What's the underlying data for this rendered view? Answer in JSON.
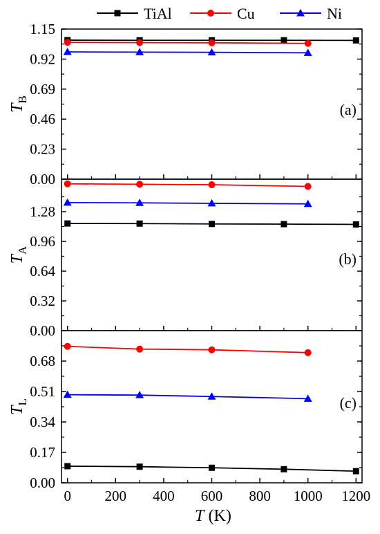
{
  "legend": [
    {
      "name": "TiAl",
      "color": "#000000",
      "marker": "square"
    },
    {
      "name": "Cu",
      "color": "#ff0000",
      "marker": "circle"
    },
    {
      "name": "Ni",
      "color": "#0000ff",
      "marker": "triangle"
    }
  ],
  "chart_data": [
    {
      "type": "line",
      "panel": "(a)",
      "ylabel": {
        "base": "T",
        "sub": "B"
      },
      "yticks": [
        "0.00",
        "0.23",
        "0.46",
        "0.69",
        "0.92",
        "1.15"
      ],
      "ylim": [
        0,
        1.15
      ],
      "xlim": [
        -25,
        1225
      ],
      "series": [
        {
          "name": "TiAl",
          "color": "#000000",
          "marker": "square",
          "x": [
            0,
            300,
            600,
            900,
            1200
          ],
          "y": [
            1.065,
            1.064,
            1.064,
            1.064,
            1.063
          ]
        },
        {
          "name": "Cu",
          "color": "#ff0000",
          "marker": "circle",
          "x": [
            0,
            300,
            600,
            1000
          ],
          "y": [
            1.048,
            1.046,
            1.045,
            1.04
          ]
        },
        {
          "name": "Ni",
          "color": "#0000ff",
          "marker": "triangle",
          "x": [
            0,
            300,
            600,
            1000
          ],
          "y": [
            0.975,
            0.973,
            0.972,
            0.968
          ]
        }
      ]
    },
    {
      "type": "line",
      "panel": "(b)",
      "ylabel": {
        "base": "T",
        "sub": "A"
      },
      "yticks": [
        "0.00",
        "0.32",
        "0.64",
        "0.96",
        "1.28"
      ],
      "ylim": [
        0,
        1.63
      ],
      "xlim": [
        -25,
        1225
      ],
      "series": [
        {
          "name": "TiAl",
          "color": "#000000",
          "marker": "square",
          "x": [
            0,
            300,
            600,
            900,
            1200
          ],
          "y": [
            1.153,
            1.152,
            1.148,
            1.146,
            1.143
          ]
        },
        {
          "name": "Cu",
          "color": "#ff0000",
          "marker": "circle",
          "x": [
            0,
            300,
            600,
            1000
          ],
          "y": [
            1.58,
            1.575,
            1.57,
            1.552
          ]
        },
        {
          "name": "Ni",
          "color": "#0000ff",
          "marker": "triangle",
          "x": [
            0,
            300,
            600,
            1000
          ],
          "y": [
            1.378,
            1.375,
            1.37,
            1.364
          ]
        }
      ]
    },
    {
      "type": "line",
      "panel": "(c)",
      "ylabel": {
        "base": "T",
        "sub": "L"
      },
      "yticks": [
        "0.00",
        "0.17",
        "0.34",
        "0.51",
        "0.68"
      ],
      "ylim": [
        0,
        0.85
      ],
      "xlim": [
        -25,
        1225
      ],
      "xlabel": {
        "base": "T",
        "unit": " (K)"
      },
      "xticks": [
        0,
        200,
        400,
        600,
        800,
        1000,
        1200
      ],
      "series": [
        {
          "name": "TiAl",
          "color": "#000000",
          "marker": "square",
          "x": [
            0,
            300,
            600,
            900,
            1200
          ],
          "y": [
            0.093,
            0.09,
            0.084,
            0.076,
            0.065
          ]
        },
        {
          "name": "Cu",
          "color": "#ff0000",
          "marker": "circle",
          "x": [
            0,
            300,
            600,
            1000
          ],
          "y": [
            0.762,
            0.747,
            0.743,
            0.727
          ]
        },
        {
          "name": "Ni",
          "color": "#0000ff",
          "marker": "triangle",
          "x": [
            0,
            300,
            600,
            1000
          ],
          "y": [
            0.492,
            0.49,
            0.482,
            0.47
          ]
        }
      ]
    }
  ]
}
